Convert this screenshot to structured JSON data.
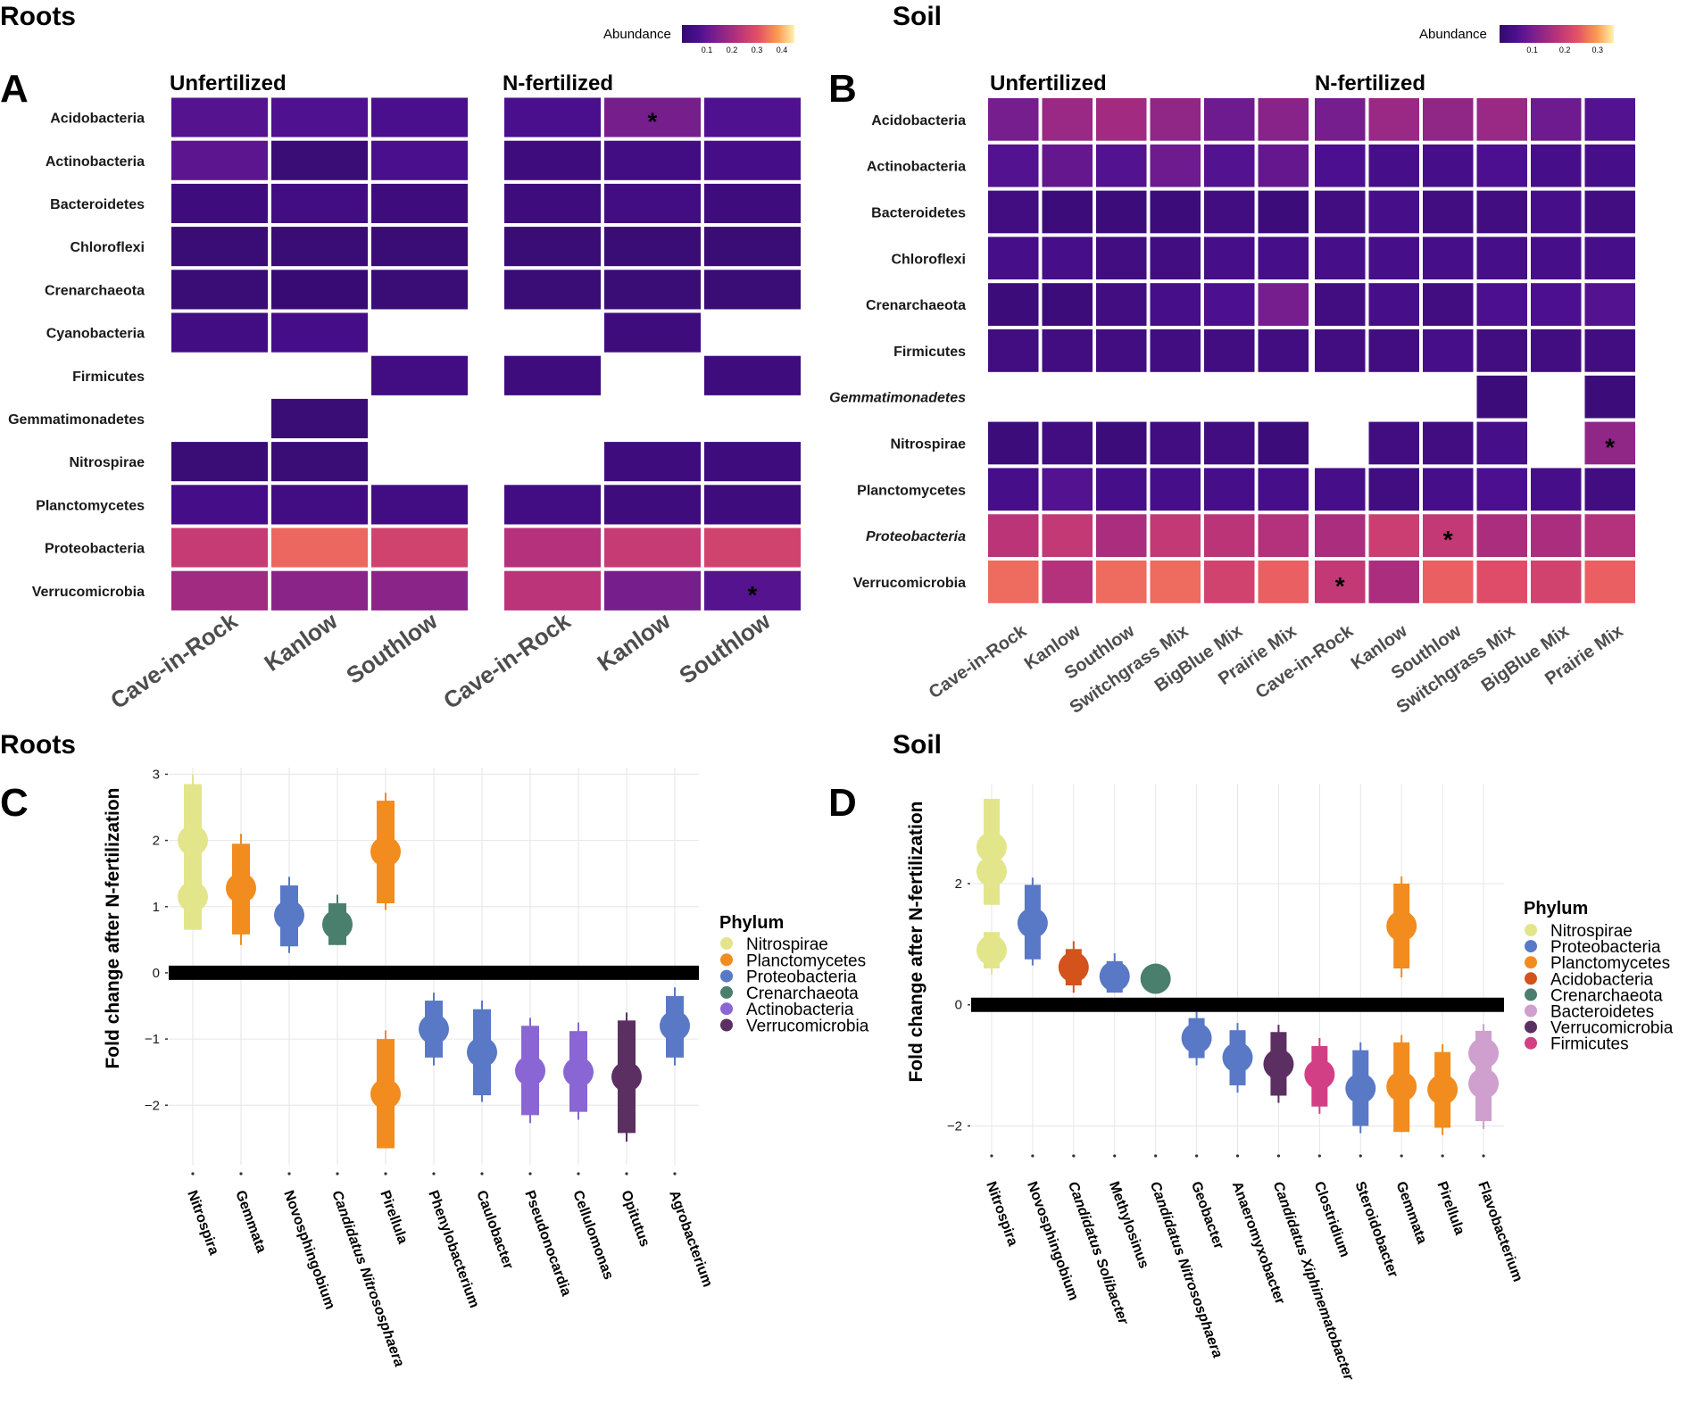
{
  "sections": {
    "roots_top": "Roots",
    "soil_top": "Soil",
    "roots_bottom": "Roots",
    "soil_bottom": "Soil"
  },
  "panels": {
    "A": "A",
    "B": "B",
    "C": "C",
    "D": "D"
  },
  "colors": {
    "Nitrospirae": "#e3e58a",
    "Planctomycetes": "#f28c1e",
    "Proteobacteria": "#5978c6",
    "Crenarchaeota": "#4a7f6e",
    "Actinobacteria": "#8a66d4",
    "Verrucomicrobia": "#5c2f63",
    "Acidobacteria": "#d4521c",
    "Bacteroidetes": "#cf9fce",
    "Firmicutes": "#d23f84",
    "zero_line": "#000000",
    "grid": "#e6e6e6"
  },
  "chart_data": [
    {
      "type": "heatmap",
      "panel": "A",
      "section": "Roots",
      "colorbar": {
        "title": "Abundance",
        "range": [
          0,
          0.45
        ],
        "ticks": [
          0.1,
          0.2,
          0.3,
          0.4
        ],
        "tick_labels": [
          "0.1",
          "0.2",
          "0.3",
          "0.4"
        ],
        "palette": "plasma-like (dark purple to light yellow)"
      },
      "rows": [
        "Acidobacteria",
        "Actinobacteria",
        "Bacteroidetes",
        "Chloroflexi",
        "Crenarchaeota",
        "Cyanobacteria",
        "Firmicutes",
        "Gemmatimonadetes",
        "Nitrospirae",
        "Planctomycetes",
        "Proteobacteria",
        "Verrucomicrobia"
      ],
      "groups": [
        {
          "name": "Unfertilized",
          "columns": [
            "Cave-in-Rock",
            "Kanlow",
            "Southlow"
          ],
          "values": [
            [
              0.08,
              0.07,
              0.06
            ],
            [
              0.09,
              0.02,
              0.06
            ],
            [
              0.03,
              0.04,
              0.03
            ],
            [
              0.02,
              0.02,
              0.02
            ],
            [
              0.02,
              0.015,
              0.02
            ],
            [
              0.04,
              0.05,
              null
            ],
            [
              null,
              null,
              0.04
            ],
            [
              null,
              0.02,
              null
            ],
            [
              0.02,
              0.02,
              null
            ],
            [
              0.05,
              0.04,
              0.04
            ],
            [
              0.25,
              0.33,
              0.27
            ],
            [
              0.19,
              0.16,
              0.16
            ]
          ],
          "stars": []
        },
        {
          "name": "N-fertilized",
          "columns": [
            "Cave-in-Rock",
            "Kanlow",
            "Southlow"
          ],
          "values": [
            [
              0.06,
              0.13,
              0.07
            ],
            [
              0.03,
              0.04,
              0.05
            ],
            [
              0.03,
              0.04,
              0.03
            ],
            [
              0.02,
              0.02,
              0.02
            ],
            [
              0.02,
              0.02,
              0.02
            ],
            [
              null,
              0.03,
              null
            ],
            [
              0.03,
              null,
              0.03
            ],
            [
              null,
              null,
              null
            ],
            [
              null,
              0.03,
              0.03
            ],
            [
              0.04,
              0.03,
              0.03
            ],
            [
              0.22,
              0.25,
              0.27
            ],
            [
              0.23,
              0.13,
              0.08
            ]
          ],
          "stars": [
            [
              0,
              1
            ],
            [
              11,
              2
            ]
          ]
        }
      ]
    },
    {
      "type": "heatmap",
      "panel": "B",
      "section": "Soil",
      "colorbar": {
        "title": "Abundance",
        "range": [
          0,
          0.35
        ],
        "ticks": [
          0.1,
          0.2,
          0.3
        ],
        "tick_labels": [
          "0.1",
          "0.2",
          "0.3"
        ],
        "palette": "plasma-like (dark purple to light yellow)"
      },
      "rows": [
        "Acidobacteria",
        "Actinobacteria",
        "Bacteroidetes",
        "Chloroflexi",
        "Crenarchaeota",
        "Firmicutes",
        "Gemmatimonadetes",
        "Nitrospirae",
        "Planctomycetes",
        "Proteobacteria",
        "Verrucomicrobia"
      ],
      "italic_rows": [
        "Gemmatimonadetes",
        "Proteobacteria"
      ],
      "groups": [
        {
          "name": "Unfertilized",
          "columns": [
            "Cave-in-Rock",
            "Kanlow",
            "Southlow",
            "Switchgrass Mix",
            "BigBlue Mix",
            "Prairie Mix"
          ],
          "values": [
            [
              0.1,
              0.14,
              0.15,
              0.13,
              0.09,
              0.12
            ],
            [
              0.06,
              0.08,
              0.06,
              0.09,
              0.06,
              0.08
            ],
            [
              0.03,
              0.02,
              0.02,
              0.02,
              0.03,
              0.02
            ],
            [
              0.04,
              0.04,
              0.03,
              0.03,
              0.04,
              0.04
            ],
            [
              0.02,
              0.02,
              0.03,
              0.04,
              0.05,
              0.1
            ],
            [
              0.03,
              0.03,
              0.03,
              0.03,
              0.03,
              0.03
            ],
            [
              null,
              null,
              null,
              null,
              null,
              null
            ],
            [
              0.02,
              0.03,
              0.02,
              0.03,
              0.03,
              0.02
            ],
            [
              0.04,
              0.06,
              0.04,
              0.04,
              0.04,
              0.04
            ],
            [
              0.18,
              0.19,
              0.16,
              0.19,
              0.18,
              0.17
            ],
            [
              0.26,
              0.17,
              0.26,
              0.26,
              0.21,
              0.25
            ]
          ],
          "stars": []
        },
        {
          "name": "N-fertilized",
          "columns": [
            "Cave-in-Rock",
            "Kanlow",
            "Southlow",
            "Switchgrass Mix",
            "BigBlue Mix",
            "Prairie Mix"
          ],
          "values": [
            [
              0.1,
              0.14,
              0.13,
              0.14,
              0.09,
              0.06
            ],
            [
              0.05,
              0.04,
              0.04,
              0.05,
              0.04,
              0.04
            ],
            [
              0.03,
              0.04,
              0.03,
              0.03,
              0.04,
              0.03
            ],
            [
              0.04,
              0.04,
              0.04,
              0.04,
              0.04,
              0.04
            ],
            [
              0.03,
              0.04,
              0.03,
              0.05,
              0.05,
              0.06
            ],
            [
              0.03,
              0.03,
              0.04,
              0.03,
              0.03,
              0.03
            ],
            [
              null,
              null,
              null,
              0.02,
              null,
              0.02
            ],
            [
              null,
              0.03,
              0.03,
              0.04,
              null,
              0.13
            ],
            [
              0.04,
              0.03,
              0.04,
              0.05,
              0.04,
              0.03
            ],
            [
              0.16,
              0.2,
              0.19,
              0.16,
              0.16,
              0.17
            ],
            [
              0.19,
              0.16,
              0.25,
              0.23,
              0.21,
              0.25
            ]
          ],
          "stars": [
            [
              7,
              5
            ],
            [
              9,
              2
            ],
            [
              10,
              0
            ]
          ]
        }
      ]
    },
    {
      "type": "scatter",
      "panel": "C",
      "section": "Roots",
      "ylabel": "Fold change after N-fertilization",
      "ylim": [
        -2.9,
        3.1
      ],
      "yticks": [
        -2,
        -1,
        0,
        1,
        2,
        3
      ],
      "ytick_labels": [
        "−2",
        "−1",
        "0",
        "1",
        "2",
        "3"
      ],
      "legend_title": "Phylum",
      "legend_position": "right",
      "legend": [
        "Nitrospirae",
        "Planctomycetes",
        "Proteobacteria",
        "Crenarchaeota",
        "Actinobacteria",
        "Verrucomicrobia"
      ],
      "points": [
        {
          "genus": "Nitrospira",
          "phylum": "Nitrospirae",
          "italic": false,
          "estimates": [
            {
              "y": 2.0,
              "lo": 1.0,
              "hi": 2.85,
              "whi": 3.0
            },
            {
              "y": 1.15,
              "lo": 0.65,
              "hi": 1.7
            }
          ]
        },
        {
          "genus": "Gemmata",
          "phylum": "Planctomycetes",
          "italic": false,
          "estimates": [
            {
              "y": 1.28,
              "lo": 0.58,
              "hi": 1.95,
              "wlo": 0.42,
              "whi": 2.1
            }
          ]
        },
        {
          "genus": "Novosphingobium",
          "phylum": "Proteobacteria",
          "italic": false,
          "estimates": [
            {
              "y": 0.87,
              "lo": 0.4,
              "hi": 1.32,
              "wlo": 0.3,
              "whi": 1.45
            }
          ]
        },
        {
          "genus": "Candidatus Nitrososphaera",
          "phylum": "Crenarchaeota",
          "italic": true,
          "estimates": [
            {
              "y": 0.73,
              "lo": 0.42,
              "hi": 1.05,
              "whi": 1.18
            }
          ]
        },
        {
          "genus": "Pirellula",
          "phylum": "Planctomycetes",
          "italic": false,
          "estimates": [
            {
              "y": 1.83,
              "lo": 1.05,
              "hi": 2.6,
              "wlo": 0.95,
              "whi": 2.72
            },
            {
              "y": -1.83,
              "lo": -2.65,
              "hi": -1.0,
              "whi": -0.87
            }
          ]
        },
        {
          "genus": "Phenylobacterium",
          "phylum": "Proteobacteria",
          "italic": false,
          "estimates": [
            {
              "y": -0.85,
              "lo": -1.28,
              "hi": -0.42,
              "wlo": -1.4,
              "whi": -0.3
            }
          ]
        },
        {
          "genus": "Caulobacter",
          "phylum": "Proteobacteria",
          "italic": false,
          "estimates": [
            {
              "y": -1.2,
              "lo": -1.85,
              "hi": -0.55,
              "wlo": -1.95,
              "whi": -0.42
            }
          ]
        },
        {
          "genus": "Pseudonocardia",
          "phylum": "Actinobacteria",
          "italic": false,
          "estimates": [
            {
              "y": -1.48,
              "lo": -2.15,
              "hi": -0.8,
              "wlo": -2.27,
              "whi": -0.68
            }
          ]
        },
        {
          "genus": "Cellulomonas",
          "phylum": "Actinobacteria",
          "italic": false,
          "estimates": [
            {
              "y": -1.5,
              "lo": -2.1,
              "hi": -0.88,
              "wlo": -2.22,
              "whi": -0.75
            }
          ]
        },
        {
          "genus": "Opitutus",
          "phylum": "Verrucomicrobia",
          "italic": false,
          "estimates": [
            {
              "y": -1.57,
              "lo": -2.42,
              "hi": -0.72,
              "wlo": -2.55,
              "whi": -0.6
            }
          ]
        },
        {
          "genus": "Agrobacterium",
          "phylum": "Proteobacteria",
          "italic": false,
          "estimates": [
            {
              "y": -0.8,
              "lo": -1.28,
              "hi": -0.35,
              "wlo": -1.4,
              "whi": -0.22
            }
          ]
        }
      ]
    },
    {
      "type": "scatter",
      "panel": "D",
      "section": "Soil",
      "ylabel": "Fold change after N-fertilization",
      "ylim": [
        -2.45,
        3.65
      ],
      "yticks": [
        -2,
        0,
        2
      ],
      "ytick_labels": [
        "−2",
        "0",
        "2"
      ],
      "legend_title": "Phylum",
      "legend_position": "right",
      "legend": [
        "Nitrospirae",
        "Proteobacteria",
        "Planctomycetes",
        "Acidobacteria",
        "Crenarchaeota",
        "Bacteroidetes",
        "Verrucomicrobia",
        "Firmicutes"
      ],
      "points": [
        {
          "genus": "Nitrospira",
          "phylum": "Nitrospirae",
          "italic": false,
          "estimates": [
            {
              "y": 2.6,
              "lo": 1.85,
              "hi": 3.4
            },
            {
              "y": 2.2,
              "lo": 1.65,
              "hi": 2.75
            },
            {
              "y": 0.9,
              "lo": 0.6,
              "hi": 1.2,
              "wlo": 0.5
            }
          ]
        },
        {
          "genus": "Novosphingobium",
          "phylum": "Proteobacteria",
          "italic": false,
          "estimates": [
            {
              "y": 1.35,
              "lo": 0.75,
              "hi": 1.98,
              "wlo": 0.65,
              "whi": 2.1
            }
          ]
        },
        {
          "genus": "Candidatus Solibacter",
          "phylum": "Acidobacteria",
          "italic": true,
          "estimates": [
            {
              "y": 0.62,
              "lo": 0.32,
              "hi": 0.92,
              "wlo": 0.2,
              "whi": 1.05
            }
          ]
        },
        {
          "genus": "Methylosinus",
          "phylum": "Proteobacteria",
          "italic": false,
          "estimates": [
            {
              "y": 0.47,
              "lo": 0.2,
              "hi": 0.72,
              "whi": 0.85
            }
          ]
        },
        {
          "genus": "Candidatus Nitrososphaera",
          "phylum": "Crenarchaeota",
          "italic": true,
          "estimates": [
            {
              "y": 0.43,
              "lo": 0.3,
              "hi": 0.58,
              "whi": 0.68
            }
          ]
        },
        {
          "genus": "Geobacter",
          "phylum": "Proteobacteria",
          "italic": false,
          "estimates": [
            {
              "y": -0.55,
              "lo": -0.88,
              "hi": -0.22,
              "wlo": -1.0,
              "whi": -0.12
            }
          ]
        },
        {
          "genus": "Anaeromyxobacter",
          "phylum": "Proteobacteria",
          "italic": false,
          "estimates": [
            {
              "y": -0.87,
              "lo": -1.33,
              "hi": -0.42,
              "wlo": -1.45,
              "whi": -0.3
            }
          ]
        },
        {
          "genus": "Candidatus Xiphinematobacter",
          "phylum": "Verrucomicrobia",
          "italic": true,
          "estimates": [
            {
              "y": -0.98,
              "lo": -1.5,
              "hi": -0.45,
              "wlo": -1.62,
              "whi": -0.33
            }
          ]
        },
        {
          "genus": "Clostridium",
          "phylum": "Firmicutes",
          "italic": false,
          "estimates": [
            {
              "y": -1.15,
              "lo": -1.68,
              "hi": -0.68,
              "wlo": -1.8,
              "whi": -0.55
            }
          ]
        },
        {
          "genus": "Steroidobacter",
          "phylum": "Proteobacteria",
          "italic": false,
          "estimates": [
            {
              "y": -1.38,
              "lo": -2.0,
              "hi": -0.75,
              "wlo": -2.12,
              "whi": -0.62
            }
          ]
        },
        {
          "genus": "Gemmata",
          "phylum": "Planctomycetes",
          "italic": false,
          "estimates": [
            {
              "y": 1.3,
              "lo": 0.6,
              "hi": 2.0,
              "wlo": 0.45,
              "whi": 2.12
            },
            {
              "y": -1.35,
              "lo": -2.1,
              "hi": -0.62,
              "whi": -0.5
            }
          ]
        },
        {
          "genus": "Pirellula",
          "phylum": "Planctomycetes",
          "italic": false,
          "estimates": [
            {
              "y": -1.4,
              "lo": -2.03,
              "hi": -0.78,
              "wlo": -2.15,
              "whi": -0.65
            }
          ]
        },
        {
          "genus": "Flavobacterium",
          "phylum": "Bacteroidetes",
          "italic": false,
          "estimates": [
            {
              "y": -0.8,
              "lo": -1.2,
              "hi": -0.43,
              "whi": -0.32
            },
            {
              "y": -1.3,
              "lo": -1.92,
              "hi": -0.7,
              "wlo": -2.05
            }
          ]
        }
      ]
    }
  ]
}
